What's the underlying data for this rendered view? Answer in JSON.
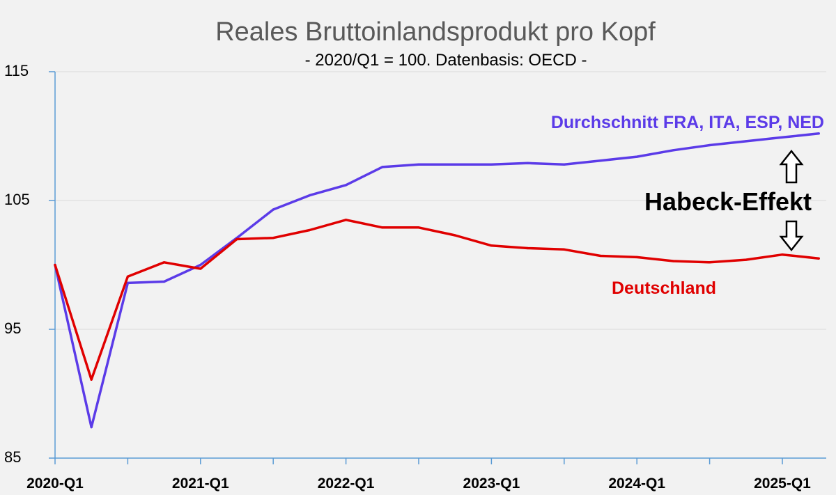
{
  "chart_data": {
    "type": "line",
    "title": "Reales Bruttoinlandsprodukt pro Kopf",
    "subtitle": "- 2020/Q1 = 100. Datenbasis: OECD -",
    "xlabel": "",
    "ylabel": "",
    "ylim": [
      85,
      115
    ],
    "yticks": [
      "115",
      "105",
      "95",
      "85"
    ],
    "ytick_values": [
      115,
      105,
      95,
      85
    ],
    "xtick_labels": [
      "2020-Q1",
      "2021-Q1",
      "2022-Q1",
      "2023-Q1",
      "2024-Q1",
      "2025-Q1"
    ],
    "x": [
      "2020-Q1",
      "2020-Q2",
      "2020-Q3",
      "2020-Q4",
      "2021-Q1",
      "2021-Q2",
      "2021-Q3",
      "2021-Q4",
      "2022-Q1",
      "2022-Q2",
      "2022-Q3",
      "2022-Q4",
      "2023-Q1",
      "2023-Q2",
      "2023-Q3",
      "2023-Q4",
      "2024-Q1",
      "2024-Q2",
      "2024-Q3",
      "2024-Q4",
      "2025-Q1",
      "2025-Q2"
    ],
    "grid": true,
    "series": [
      {
        "name": "Durchschnitt FRA, ITA, ESP, NED",
        "color": "#5b3be8",
        "values": [
          100,
          87.4,
          98.6,
          98.7,
          100.0,
          102.1,
          104.3,
          105.4,
          106.2,
          107.6,
          107.8,
          107.8,
          107.8,
          107.9,
          107.8,
          108.1,
          108.4,
          108.9,
          109.3,
          109.6,
          109.9,
          110.2
        ]
      },
      {
        "name": "Deutschland",
        "color": "#e00000",
        "values": [
          100,
          91.1,
          99.1,
          100.2,
          99.7,
          102.0,
          102.1,
          102.7,
          103.5,
          102.9,
          102.9,
          102.3,
          101.5,
          101.3,
          101.2,
          100.7,
          100.6,
          100.3,
          100.2,
          100.4,
          100.8,
          100.5
        ]
      }
    ],
    "annotation": {
      "text": "Habeck-Effekt"
    }
  }
}
